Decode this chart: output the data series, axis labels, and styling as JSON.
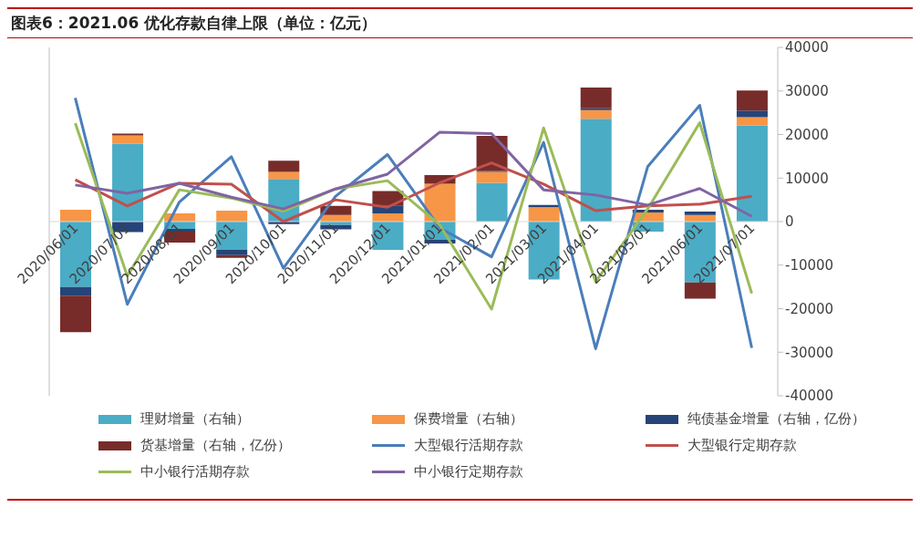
{
  "chart_data": {
    "type": "bar",
    "title": "图表6：2021.06 优化存款自律上限（单位：亿元）",
    "categories": [
      "2020/06/01",
      "2020/07/01",
      "2020/08/01",
      "2020/09/01",
      "2020/10/01",
      "2020/11/01",
      "2020/12/01",
      "2021/01/01",
      "2021/02/01",
      "2021/03/01",
      "2021/04/01",
      "2021/05/01",
      "2021/06/01",
      "2021/07/01"
    ],
    "stacked": true,
    "legend": "bottom",
    "ylim": [
      -40000,
      40000
    ],
    "yticks": [
      -40000,
      -30000,
      -20000,
      -10000,
      0,
      10000,
      20000,
      30000,
      40000
    ],
    "series": [
      {
        "name": "理财增量（右轴）",
        "color": "#4bacc6",
        "values": [
          -15000,
          17900,
          -1700,
          -6500,
          9800,
          -800,
          -6500,
          -4200,
          8900,
          -13300,
          23600,
          -2300,
          -14000,
          22100
        ]
      },
      {
        "name": "保费增量（右轴）",
        "color": "#f79646",
        "values": [
          2700,
          1900,
          1900,
          2500,
          1600,
          1500,
          1900,
          8700,
          2500,
          3300,
          2000,
          2100,
          1500,
          1900
        ]
      },
      {
        "name": "纯债基金增量（右轴，亿份）",
        "color": "#264478",
        "values": [
          -2000,
          -2400,
          -600,
          -1200,
          -600,
          -1000,
          1800,
          -800,
          200,
          500,
          400,
          600,
          800,
          1500
        ]
      },
      {
        "name": "货基增量（右轴，亿份）",
        "color": "#772c2a",
        "values": [
          -8400,
          400,
          -2500,
          -600,
          2600,
          2100,
          3300,
          2000,
          8100,
          null,
          4800,
          null,
          -3700,
          4600
        ]
      },
      {
        "name": "大型银行活期存款",
        "type": "line",
        "color": "#4a7ebb",
        "values": [
          28400,
          -19000,
          4500,
          14900,
          -10700,
          5800,
          15400,
          -1400,
          -8100,
          18200,
          -29200,
          12600,
          26700,
          -29000
        ]
      },
      {
        "name": "大型银行定期存款",
        "type": "line",
        "color": "#c0504d",
        "values": [
          9600,
          3600,
          8800,
          8600,
          0,
          5000,
          3300,
          8900,
          13500,
          8600,
          2500,
          3600,
          4000,
          5800
        ]
      },
      {
        "name": "中小银行活期存款",
        "type": "line",
        "color": "#9bbb59",
        "values": [
          22600,
          -12500,
          7300,
          5400,
          2400,
          7500,
          9400,
          -700,
          -20100,
          21500,
          -13800,
          2900,
          22700,
          -16500
        ]
      },
      {
        "name": "中小银行定期存款",
        "type": "line",
        "color": "#8064a2",
        "values": [
          8400,
          6500,
          8800,
          5600,
          2900,
          7500,
          10900,
          20500,
          20200,
          7300,
          6100,
          3800,
          7600,
          1200
        ]
      }
    ]
  }
}
